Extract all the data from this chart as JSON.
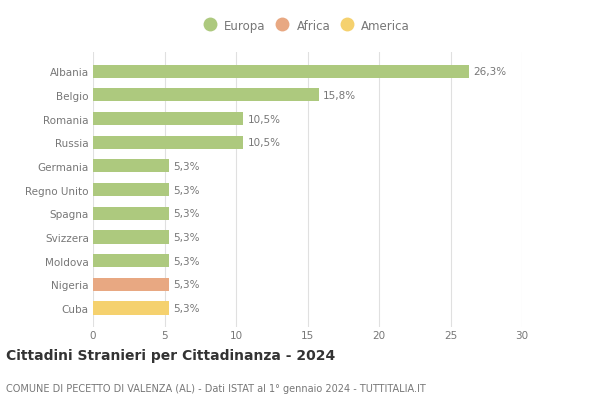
{
  "title": "Cittadini Stranieri per Cittadinanza - 2024",
  "subtitle": "COMUNE DI PECETTO DI VALENZA (AL) - Dati ISTAT al 1° gennaio 2024 - TUTTITALIA.IT",
  "categories": [
    "Albania",
    "Belgio",
    "Romania",
    "Russia",
    "Germania",
    "Regno Unito",
    "Spagna",
    "Svizzera",
    "Moldova",
    "Nigeria",
    "Cuba"
  ],
  "values": [
    26.3,
    15.8,
    10.5,
    10.5,
    5.3,
    5.3,
    5.3,
    5.3,
    5.3,
    5.3,
    5.3
  ],
  "bar_colors": [
    "#adc97e",
    "#adc97e",
    "#adc97e",
    "#adc97e",
    "#adc97e",
    "#adc97e",
    "#adc97e",
    "#adc97e",
    "#adc97e",
    "#e8a882",
    "#f5d16e"
  ],
  "labels": [
    "26,3%",
    "15,8%",
    "10,5%",
    "10,5%",
    "5,3%",
    "5,3%",
    "5,3%",
    "5,3%",
    "5,3%",
    "5,3%",
    "5,3%"
  ],
  "xlim": [
    0,
    30
  ],
  "xticks": [
    0,
    5,
    10,
    15,
    20,
    25,
    30
  ],
  "legend_items": [
    {
      "label": "Europa",
      "color": "#adc97e"
    },
    {
      "label": "Africa",
      "color": "#e8a882"
    },
    {
      "label": "America",
      "color": "#f5d16e"
    }
  ],
  "background_color": "#ffffff",
  "grid_color": "#e0e0e0",
  "bar_height": 0.55,
  "label_fontsize": 7.5,
  "title_fontsize": 10,
  "subtitle_fontsize": 7,
  "tick_label_fontsize": 7.5,
  "legend_fontsize": 8.5,
  "text_color": "#777777",
  "title_color": "#333333"
}
